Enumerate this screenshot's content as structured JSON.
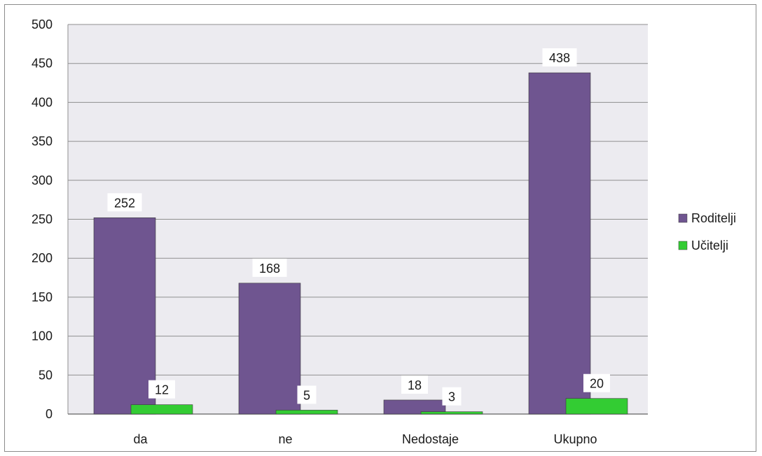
{
  "chart_data": {
    "type": "bar",
    "categories": [
      "da",
      "ne",
      "Nedostaje",
      "Ukupno"
    ],
    "series": [
      {
        "name": "Roditelji",
        "values": [
          252,
          168,
          18,
          438
        ],
        "color": "#6f5590"
      },
      {
        "name": "Učitelji",
        "values": [
          12,
          5,
          3,
          20
        ],
        "color": "#33cc33"
      }
    ],
    "ylim": [
      0,
      500
    ],
    "yticks": [
      0,
      50,
      100,
      150,
      200,
      250,
      300,
      350,
      400,
      450,
      500
    ],
    "grid": true,
    "plot_background": "#ecebf0",
    "legend_position": "right",
    "data_labels": true
  }
}
